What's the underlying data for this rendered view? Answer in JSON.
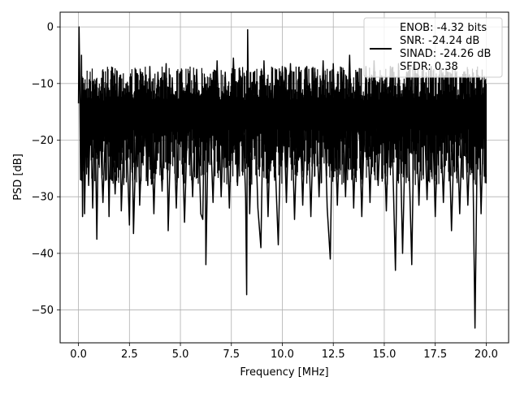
{
  "chart_data": {
    "type": "line",
    "xlabel": "Frequency [MHz]",
    "ylabel": "PSD [dB]",
    "xlim": [
      -0.9,
      21.1
    ],
    "ylim": [
      -55.8,
      2.6
    ],
    "x_ticks": [
      0.0,
      2.5,
      5.0,
      7.5,
      10.0,
      12.5,
      15.0,
      17.5,
      20.0
    ],
    "x_tick_labels": [
      "0.0",
      "2.5",
      "5.0",
      "7.5",
      "10.0",
      "12.5",
      "15.0",
      "17.5",
      "20.0"
    ],
    "y_ticks": [
      0,
      -10,
      -20,
      -30,
      -40,
      -50
    ],
    "y_tick_labels": [
      "0",
      "−10",
      "−20",
      "−30",
      "−40",
      "−50"
    ],
    "grid": true,
    "legend": {
      "placement": "top-right",
      "entries": [
        "ENOB: -4.32 bits",
        "SNR: -24.24 dB",
        "SINAD: -24.26 dB",
        "SFDR: 0.38"
      ]
    },
    "series": [
      {
        "color": "#000000",
        "points": [
          [
            0.0,
            -13.5
          ],
          [
            0.03,
            0.0
          ],
          [
            0.06,
            -8.0
          ],
          [
            0.1,
            -27.0
          ],
          [
            0.15,
            -5.0
          ],
          [
            0.2,
            -33.5
          ],
          [
            0.25,
            -10.0
          ],
          [
            0.3,
            -33.0
          ],
          [
            0.4,
            -11.0
          ],
          [
            0.5,
            -28.0
          ],
          [
            0.6,
            -13.0
          ],
          [
            0.7,
            -32.0
          ],
          [
            0.8,
            -12.0
          ],
          [
            0.9,
            -37.5
          ],
          [
            1.0,
            -11.5
          ],
          [
            1.2,
            -31.0
          ],
          [
            1.4,
            -10.0
          ],
          [
            1.5,
            -33.5
          ],
          [
            1.6,
            -11.0
          ],
          [
            1.8,
            -29.5
          ],
          [
            2.0,
            -9.0
          ],
          [
            2.1,
            -32.5
          ],
          [
            2.3,
            -12.0
          ],
          [
            2.5,
            -35.0
          ],
          [
            2.6,
            -10.0
          ],
          [
            2.7,
            -36.5
          ],
          [
            2.9,
            -9.5
          ],
          [
            3.0,
            -31.5
          ],
          [
            3.2,
            -12.0
          ],
          [
            3.4,
            -28.0
          ],
          [
            3.5,
            -7.0
          ],
          [
            3.7,
            -33.0
          ],
          [
            3.9,
            -8.0
          ],
          [
            4.1,
            -29.0
          ],
          [
            4.3,
            -6.5
          ],
          [
            4.4,
            -36.0
          ],
          [
            4.6,
            -9.0
          ],
          [
            4.8,
            -32.0
          ],
          [
            5.0,
            -8.0
          ],
          [
            5.2,
            -34.5
          ],
          [
            5.4,
            -10.0
          ],
          [
            5.6,
            -30.0
          ],
          [
            5.8,
            -7.5
          ],
          [
            6.0,
            -33.0
          ],
          [
            6.1,
            -34.0
          ],
          [
            6.2,
            -9.0
          ],
          [
            6.25,
            -42.0
          ],
          [
            6.4,
            -11.0
          ],
          [
            6.6,
            -31.0
          ],
          [
            6.8,
            -6.0
          ],
          [
            7.0,
            -30.0
          ],
          [
            7.2,
            -8.0
          ],
          [
            7.4,
            -32.0
          ],
          [
            7.6,
            -5.5
          ],
          [
            7.8,
            -28.0
          ],
          [
            8.0,
            -9.0
          ],
          [
            8.2,
            -30.0
          ],
          [
            8.25,
            -47.3
          ],
          [
            8.3,
            -0.5
          ],
          [
            8.4,
            -33.0
          ],
          [
            8.6,
            -8.0
          ],
          [
            8.8,
            -32.0
          ],
          [
            8.95,
            -39.0
          ],
          [
            9.1,
            -6.0
          ],
          [
            9.3,
            -33.5
          ],
          [
            9.5,
            -8.0
          ],
          [
            9.7,
            -29.0
          ],
          [
            9.8,
            -38.5
          ],
          [
            10.0,
            -7.0
          ],
          [
            10.2,
            -31.0
          ],
          [
            10.4,
            -6.5
          ],
          [
            10.6,
            -34.0
          ],
          [
            10.8,
            -9.0
          ],
          [
            11.0,
            -31.5
          ],
          [
            11.2,
            -7.0
          ],
          [
            11.4,
            -33.5
          ],
          [
            11.6,
            -8.0
          ],
          [
            11.8,
            -30.0
          ],
          [
            12.0,
            -6.0
          ],
          [
            12.2,
            -32.0
          ],
          [
            12.35,
            -41.0
          ],
          [
            12.5,
            -6.5
          ],
          [
            12.7,
            -31.5
          ],
          [
            12.9,
            -8.0
          ],
          [
            13.1,
            -30.0
          ],
          [
            13.3,
            -5.0
          ],
          [
            13.5,
            -32.0
          ],
          [
            13.7,
            -8.0
          ],
          [
            13.9,
            -33.5
          ],
          [
            14.1,
            -7.0
          ],
          [
            14.3,
            -31.0
          ],
          [
            14.5,
            -6.0
          ],
          [
            14.7,
            -28.0
          ],
          [
            14.9,
            -9.0
          ],
          [
            15.1,
            -32.5
          ],
          [
            15.3,
            -7.0
          ],
          [
            15.55,
            -43.0
          ],
          [
            15.7,
            -6.5
          ],
          [
            15.9,
            -40.0
          ],
          [
            16.1,
            -8.0
          ],
          [
            16.35,
            -42.0
          ],
          [
            16.5,
            -6.5
          ],
          [
            16.7,
            -31.5
          ],
          [
            16.9,
            -8.5
          ],
          [
            17.1,
            -30.5
          ],
          [
            17.3,
            -7.0
          ],
          [
            17.5,
            -33.5
          ],
          [
            17.7,
            -9.0
          ],
          [
            17.9,
            -31.0
          ],
          [
            18.1,
            -8.0
          ],
          [
            18.3,
            -36.0
          ],
          [
            18.5,
            -9.5
          ],
          [
            18.7,
            -33.0
          ],
          [
            18.9,
            -8.0
          ],
          [
            19.1,
            -31.5
          ],
          [
            19.3,
            -10.0
          ],
          [
            19.45,
            -53.2
          ],
          [
            19.6,
            -9.0
          ],
          [
            19.75,
            -33.0
          ],
          [
            19.9,
            -12.0
          ],
          [
            20.0,
            -26.5
          ]
        ]
      }
    ]
  }
}
